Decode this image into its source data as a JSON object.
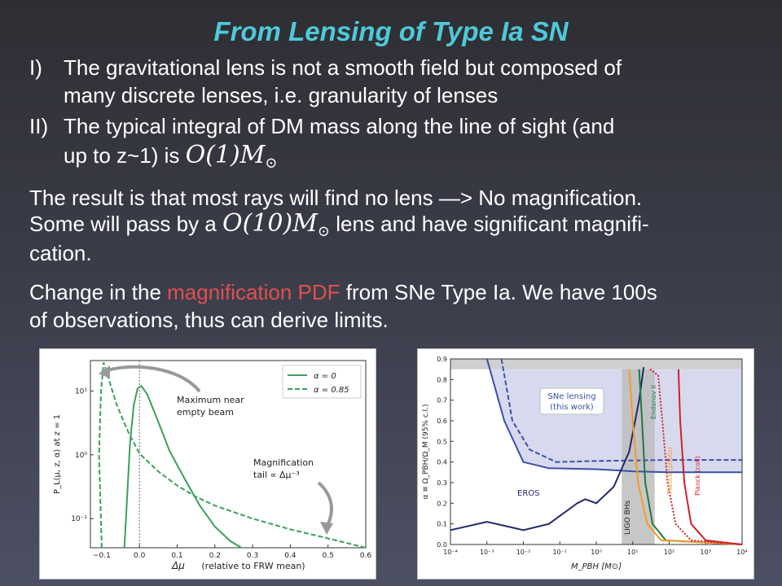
{
  "slide": {
    "title": "From Lensing of Type Ia SN",
    "item1": {
      "marker": "I)",
      "line1": "The gravitational lens is not a smooth field but composed of",
      "line2": "many discrete lenses, i.e. granularity of lenses"
    },
    "item2": {
      "marker": "II)",
      "line1": "The typical integral of DM mass along the line of sight (and",
      "line2_text": "up to z~1) is",
      "line2_math": "O(1)M",
      "line2_math_sub": "⊙"
    },
    "para1": {
      "line1": "The result is that most rays will find no lens —> No magnification.",
      "line2_pre": "Some will pass by a",
      "line2_math": "O(10)M",
      "line2_math_sub": "⊙",
      "line2_post": "lens and have significant magnifi-",
      "line3": "cation."
    },
    "para2": {
      "line1_pre": "Change in the",
      "line1_highlight": "magnification PDF",
      "line1_post": "from SNe Type Ia. We have 100s",
      "line2": "of observations, thus can derive limits."
    }
  },
  "colors": {
    "title": "#4fc9d8",
    "highlight": "#e05050",
    "pdf_line": "#3aa05a",
    "eros": "#1f2a6b",
    "sne": "#3a4fa8",
    "sne_fill": "#c9cdea",
    "ligo_band": "#bdbdbd",
    "endanov": "#1e7a46",
    "planck_photo": "#f39c2a",
    "planck_coll": "#d0202a"
  },
  "chart_data": [
    {
      "type": "line",
      "xlabel": "Δμ",
      "xlabel_note": "(relative to FRW mean)",
      "ylabel": "P_L(μ, z, α) at z = 1",
      "yscale": "log",
      "xlim": [
        -0.13,
        0.6
      ],
      "xticks": [
        -0.1,
        0.0,
        0.1,
        0.2,
        0.3,
        0.4,
        0.5,
        0.6
      ],
      "xtick_labels": [
        "−0.1",
        "0.0",
        "0.1",
        "0.2",
        "0.3",
        "0.4",
        "0.5",
        "0.6"
      ],
      "yticks": [
        0.1,
        1,
        10
      ],
      "ytick_labels": [
        "10⁻¹",
        "10⁰",
        "10¹"
      ],
      "legend_position": "top-right",
      "series": [
        {
          "name": "α = 0",
          "style": "solid",
          "points": [
            [
              -0.04,
              0.035
            ],
            [
              -0.033,
              0.2
            ],
            [
              -0.025,
              1.5
            ],
            [
              -0.015,
              6
            ],
            [
              -0.005,
              11
            ],
            [
              0.005,
              12
            ],
            [
              0.02,
              9
            ],
            [
              0.05,
              3.3
            ],
            [
              0.08,
              1.15
            ],
            [
              0.12,
              0.42
            ],
            [
              0.16,
              0.16
            ],
            [
              0.2,
              0.075
            ],
            [
              0.24,
              0.045
            ],
            [
              0.27,
              0.035
            ]
          ]
        },
        {
          "name": "α = 0.85",
          "style": "dashed",
          "points": [
            [
              -0.1,
              0.035
            ],
            [
              -0.107,
              1
            ],
            [
              -0.102,
              10
            ],
            [
              -0.095,
              28
            ],
            [
              -0.085,
              18
            ],
            [
              -0.06,
              6
            ],
            [
              -0.03,
              2.3
            ],
            [
              0.0,
              1.05
            ],
            [
              0.05,
              0.55
            ],
            [
              0.1,
              0.33
            ],
            [
              0.15,
              0.22
            ],
            [
              0.2,
              0.16
            ],
            [
              0.3,
              0.1
            ],
            [
              0.4,
              0.068
            ],
            [
              0.5,
              0.049
            ],
            [
              0.6,
              0.035
            ]
          ]
        }
      ],
      "annotations": [
        {
          "line1": "Maximum near",
          "line2": "empty beam"
        },
        {
          "line1": "Magnification",
          "line2": "tail ∝ Δμ⁻³"
        }
      ]
    },
    {
      "type": "line",
      "xlabel": "M_PBH [M⊙]",
      "ylabel": "α ≡ Ω_PBH/Ω_M (95% c.l.)",
      "xscale": "log",
      "xlim": [
        0.0001,
        10000
      ],
      "ylim": [
        0,
        0.9
      ],
      "xtick_labels": [
        "10⁻⁴",
        "10⁻³",
        "10⁻²",
        "10⁻¹",
        "10⁰",
        "10¹",
        "10²",
        "10³",
        "10⁴"
      ],
      "yticks": [
        0.0,
        0.1,
        0.2,
        0.3,
        0.4,
        0.5,
        0.6,
        0.7,
        0.8,
        0.9
      ],
      "ytick_labels": [
        "0.0",
        "0.1",
        "0.2",
        "0.3",
        "0.4",
        "0.5",
        "0.6",
        "0.7",
        "0.8",
        "0.9"
      ],
      "labels": {
        "sne": "SNe lensing",
        "sne_sub": "(this work)",
        "eros": "EROS",
        "ligo": "LIGO BHs",
        "endanov": "Endanov II",
        "planck_photo": "Planck (photo)",
        "planck_coll": "Planck (coll)"
      },
      "series": [
        {
          "name": "SNe lensing solid",
          "points": [
            [
              0.001,
              0.9
            ],
            [
              0.003,
              0.6
            ],
            [
              0.01,
              0.4
            ],
            [
              0.05,
              0.37
            ],
            [
              1,
              0.365
            ],
            [
              10,
              0.355
            ],
            [
              100,
              0.35
            ],
            [
              10000,
              0.35
            ]
          ]
        },
        {
          "name": "SNe lensing dashed",
          "points": [
            [
              0.0025,
              0.9
            ],
            [
              0.005,
              0.6
            ],
            [
              0.015,
              0.46
            ],
            [
              0.08,
              0.4
            ],
            [
              1,
              0.405
            ],
            [
              100,
              0.41
            ],
            [
              10000,
              0.41
            ]
          ]
        },
        {
          "name": "EROS",
          "points": [
            [
              0.0001,
              0.07
            ],
            [
              0.001,
              0.11
            ],
            [
              0.01,
              0.07
            ],
            [
              0.05,
              0.1
            ],
            [
              0.3,
              0.2
            ],
            [
              0.5,
              0.22
            ],
            [
              1,
              0.2
            ],
            [
              3,
              0.28
            ],
            [
              8,
              0.45
            ],
            [
              15,
              0.7
            ],
            [
              20,
              0.86
            ]
          ]
        },
        {
          "name": "Endanov II",
          "points": [
            [
              15,
              0.85
            ],
            [
              18,
              0.6
            ],
            [
              22,
              0.3
            ],
            [
              35,
              0.1
            ],
            [
              80,
              0.02
            ],
            [
              10000,
              0.0
            ]
          ]
        },
        {
          "name": "Planck (photo)",
          "points": [
            [
              8,
              0.85
            ],
            [
              10,
              0.6
            ],
            [
              14,
              0.3
            ],
            [
              25,
              0.1
            ],
            [
              60,
              0.02
            ],
            [
              10000,
              0.0
            ]
          ]
        },
        {
          "name": "Planck (coll)",
          "points": [
            [
              180,
              0.85
            ],
            [
              200,
              0.6
            ],
            [
              260,
              0.3
            ],
            [
              400,
              0.1
            ],
            [
              1000,
              0.02
            ],
            [
              10000,
              0.0
            ]
          ]
        },
        {
          "name": "Planck dotted",
          "points": [
            [
              30,
              0.85
            ],
            [
              50,
              0.82
            ],
            [
              65,
              0.6
            ],
            [
              90,
              0.3
            ],
            [
              150,
              0.1
            ],
            [
              400,
              0.02
            ],
            [
              10000,
              0.0
            ]
          ]
        }
      ],
      "ligo_band": [
        5,
        40
      ]
    }
  ]
}
